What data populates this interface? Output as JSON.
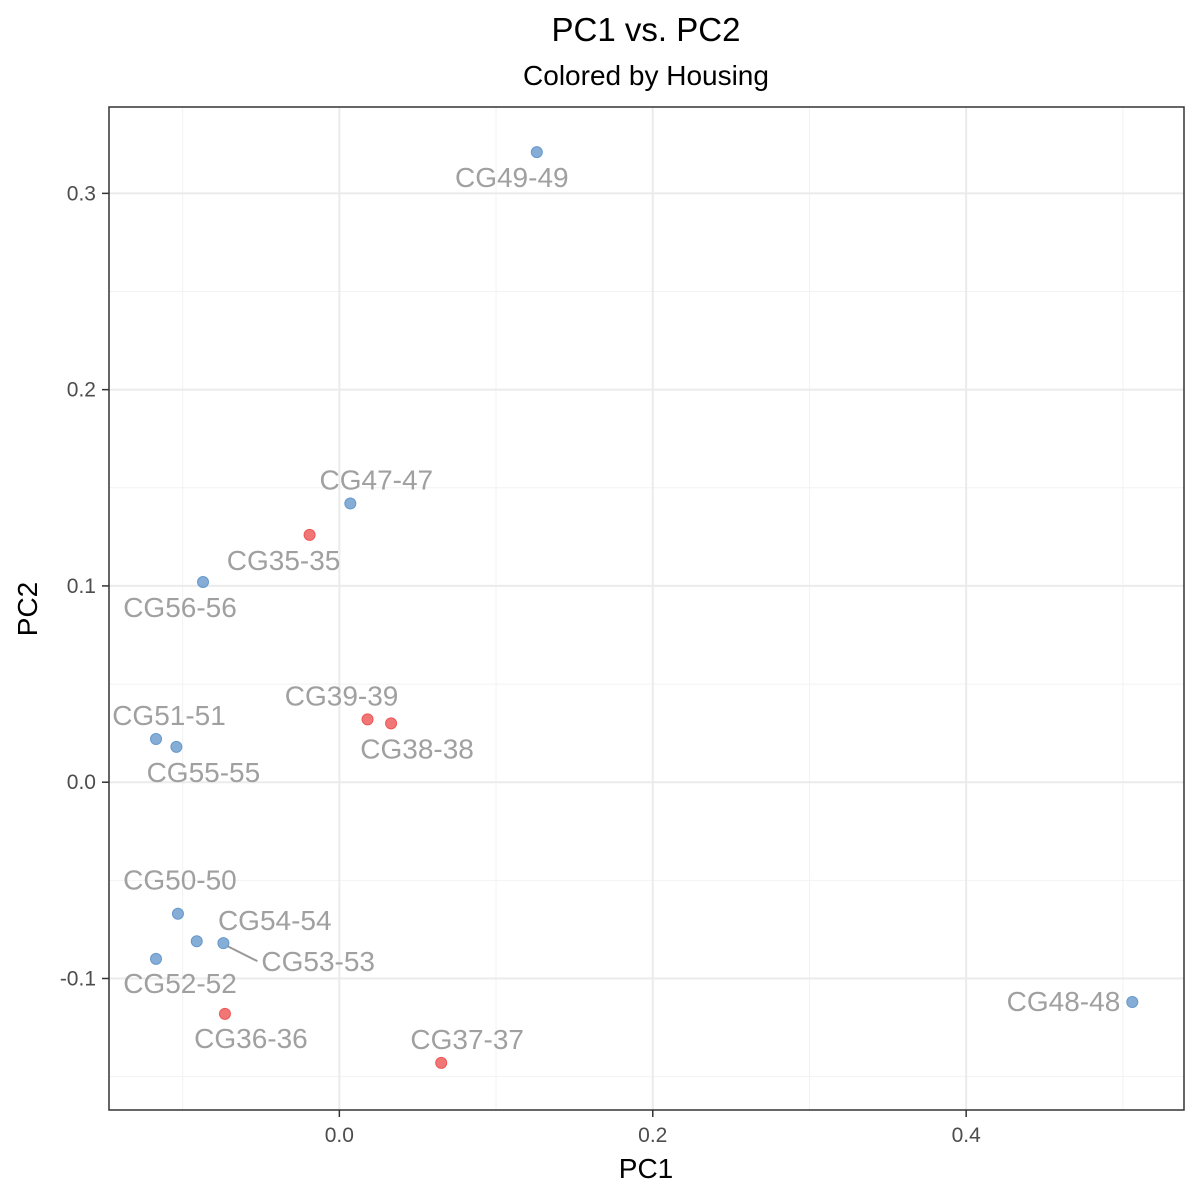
{
  "chart_data": {
    "type": "scatter",
    "title": "PC1 vs. PC2",
    "subtitle": "Colored by Housing",
    "xlabel": "PC1",
    "ylabel": "PC2",
    "xlim": [
      -0.147,
      0.539
    ],
    "ylim": [
      -0.167,
      0.344
    ],
    "x_ticks": [
      0.0,
      0.2,
      0.4
    ],
    "x_tick_labels": [
      "0.0",
      "0.2",
      "0.4"
    ],
    "y_ticks": [
      -0.1,
      0.0,
      0.1,
      0.2,
      0.3
    ],
    "y_tick_labels": [
      "-0.1",
      "0.0",
      "0.1",
      "0.2",
      "0.3"
    ],
    "grid": true,
    "legend": "none",
    "colors": {
      "blue": "#6699cc",
      "red": "#ee5555",
      "label": "#a0a0a0"
    },
    "points": [
      {
        "label": "CG49-49",
        "x": 0.126,
        "y": 0.321,
        "color": "blue"
      },
      {
        "label": "CG47-47",
        "x": 0.007,
        "y": 0.142,
        "color": "blue"
      },
      {
        "label": "CG35-35",
        "x": -0.019,
        "y": 0.126,
        "color": "red"
      },
      {
        "label": "CG56-56",
        "x": -0.087,
        "y": 0.102,
        "color": "blue"
      },
      {
        "label": "CG39-39",
        "x": 0.018,
        "y": 0.032,
        "color": "red"
      },
      {
        "label": "CG38-38",
        "x": 0.033,
        "y": 0.03,
        "color": "red"
      },
      {
        "label": "CG51-51",
        "x": -0.117,
        "y": 0.022,
        "color": "blue"
      },
      {
        "label": "CG55-55",
        "x": -0.104,
        "y": 0.018,
        "color": "blue"
      },
      {
        "label": "CG50-50",
        "x": -0.103,
        "y": -0.067,
        "color": "blue"
      },
      {
        "label": "CG54-54",
        "x": -0.091,
        "y": -0.081,
        "color": "blue"
      },
      {
        "label": "CG53-53",
        "x": -0.074,
        "y": -0.082,
        "color": "blue"
      },
      {
        "label": "CG52-52",
        "x": -0.117,
        "y": -0.09,
        "color": "blue"
      },
      {
        "label": "CG48-48",
        "x": 0.506,
        "y": -0.112,
        "color": "blue"
      },
      {
        "label": "CG36-36",
        "x": -0.073,
        "y": -0.118,
        "color": "red"
      },
      {
        "label": "CG37-37",
        "x": 0.065,
        "y": -0.143,
        "color": "red"
      }
    ]
  }
}
